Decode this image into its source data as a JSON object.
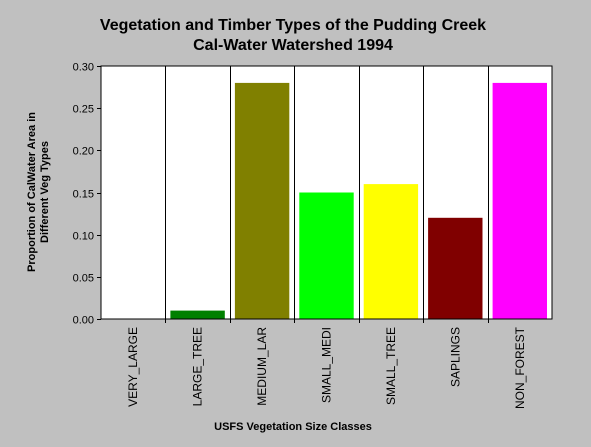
{
  "chart_data": {
    "type": "bar",
    "title": [
      "Vegetation and Timber Types of the Pudding Creek",
      "Cal-Water Watershed 1994"
    ],
    "xlabel": "USFS Vegetation Size Classes",
    "ylabel": [
      "Proportion of CalWater Area in",
      "Different Veg Types"
    ],
    "ylim": [
      0,
      0.3
    ],
    "yticks": [
      "0.00",
      "0.05",
      "0.10",
      "0.15",
      "0.20",
      "0.25",
      "0.30"
    ],
    "grid": "vertical separators between categories",
    "categories": [
      "VERY_LARGE",
      "LARGE_TREE",
      "MEDIUM_LAR",
      "SMALL_MEDI",
      "SMALL_TREE",
      "SAPLINGS",
      "NON_FOREST"
    ],
    "values": [
      0.0,
      0.01,
      0.28,
      0.15,
      0.16,
      0.12,
      0.28
    ],
    "colors": [
      "#008000",
      "#008000",
      "#808000",
      "#00ff00",
      "#ffff00",
      "#800000",
      "#ff00ff"
    ],
    "plot_background": "#ffffff",
    "page_background": "#c0c0c0"
  }
}
